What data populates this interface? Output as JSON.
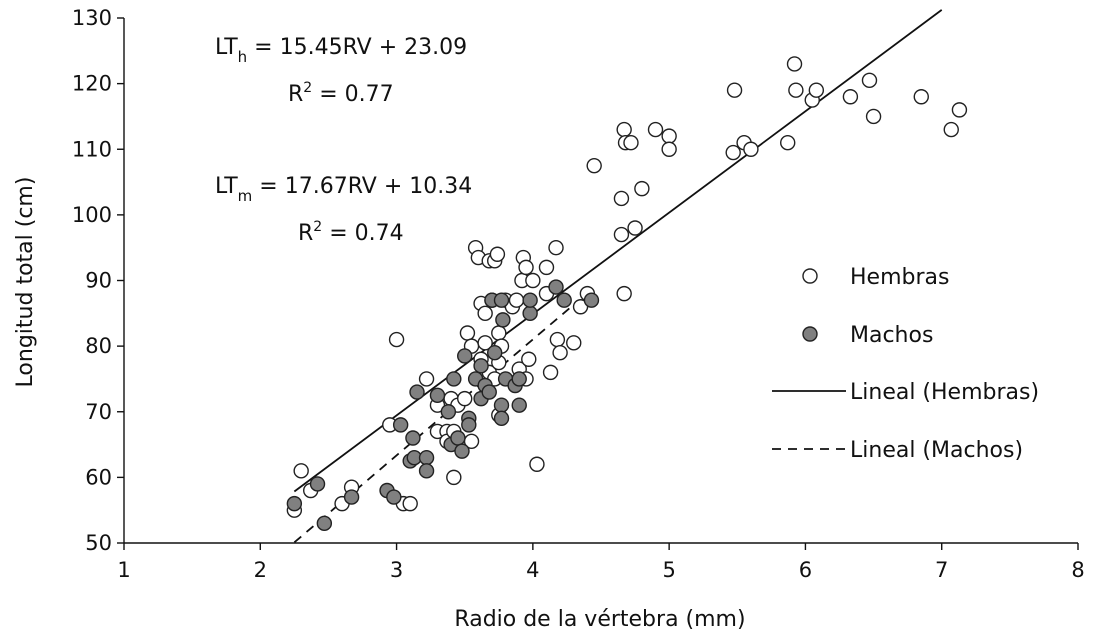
{
  "chart_data": {
    "type": "scatter",
    "xlabel": "Radio de la vértebra (mm)",
    "ylabel": "Longitud total (cm)",
    "xlim": [
      1,
      8
    ],
    "ylim": [
      50,
      130
    ],
    "xticks": [
      1,
      2,
      3,
      4,
      5,
      6,
      7,
      8
    ],
    "yticks": [
      50,
      60,
      70,
      80,
      90,
      100,
      110,
      120,
      130
    ],
    "grid": false,
    "legend_position": "right",
    "series": [
      {
        "name": "Hembras",
        "marker": "open-circle",
        "color": "#ffffff",
        "points": [
          [
            2.25,
            55
          ],
          [
            2.3,
            61
          ],
          [
            2.37,
            58
          ],
          [
            2.67,
            58.5
          ],
          [
            2.6,
            56
          ],
          [
            2.95,
            68
          ],
          [
            3.0,
            81
          ],
          [
            3.05,
            56
          ],
          [
            3.1,
            56
          ],
          [
            3.22,
            75
          ],
          [
            3.3,
            67
          ],
          [
            3.3,
            71
          ],
          [
            3.37,
            67
          ],
          [
            3.37,
            65.5
          ],
          [
            3.4,
            72
          ],
          [
            3.42,
            60
          ],
          [
            3.42,
            67
          ],
          [
            3.45,
            71
          ],
          [
            3.5,
            72
          ],
          [
            3.52,
            82
          ],
          [
            3.55,
            80
          ],
          [
            3.55,
            65.5
          ],
          [
            3.58,
            95
          ],
          [
            3.6,
            93.5
          ],
          [
            3.62,
            86.5
          ],
          [
            3.62,
            78
          ],
          [
            3.65,
            85
          ],
          [
            3.65,
            80.5
          ],
          [
            3.68,
            93
          ],
          [
            3.68,
            76
          ],
          [
            3.7,
            87
          ],
          [
            3.72,
            75
          ],
          [
            3.72,
            93
          ],
          [
            3.74,
            94
          ],
          [
            3.75,
            77.5
          ],
          [
            3.75,
            82
          ],
          [
            3.75,
            69.5
          ],
          [
            3.77,
            80
          ],
          [
            3.8,
            87
          ],
          [
            3.85,
            86
          ],
          [
            3.88,
            87
          ],
          [
            3.9,
            76.5
          ],
          [
            3.92,
            90
          ],
          [
            3.93,
            93.5
          ],
          [
            3.95,
            92
          ],
          [
            3.95,
            75
          ],
          [
            3.97,
            78
          ],
          [
            4.0,
            90
          ],
          [
            4.03,
            62
          ],
          [
            4.1,
            88
          ],
          [
            4.1,
            92
          ],
          [
            4.13,
            76
          ],
          [
            4.17,
            95
          ],
          [
            4.18,
            81
          ],
          [
            4.2,
            79
          ],
          [
            4.3,
            80.5
          ],
          [
            4.35,
            86
          ],
          [
            4.4,
            88
          ],
          [
            4.45,
            107.5
          ],
          [
            4.65,
            102.5
          ],
          [
            4.65,
            97
          ],
          [
            4.67,
            88
          ],
          [
            4.67,
            113
          ],
          [
            4.68,
            111
          ],
          [
            4.72,
            111
          ],
          [
            4.75,
            98
          ],
          [
            4.8,
            104
          ],
          [
            4.9,
            113
          ],
          [
            5.0,
            112
          ],
          [
            5.0,
            110
          ],
          [
            5.47,
            109.5
          ],
          [
            5.48,
            119
          ],
          [
            5.55,
            111
          ],
          [
            5.6,
            110
          ],
          [
            5.87,
            111
          ],
          [
            5.92,
            123
          ],
          [
            5.93,
            119
          ],
          [
            6.05,
            117.5
          ],
          [
            6.08,
            119
          ],
          [
            6.33,
            118
          ],
          [
            6.47,
            120.5
          ],
          [
            6.5,
            115
          ],
          [
            6.85,
            118
          ],
          [
            7.07,
            113
          ],
          [
            7.13,
            116
          ]
        ]
      },
      {
        "name": "Machos",
        "marker": "filled-circle",
        "color": "#808080",
        "points": [
          [
            2.25,
            56
          ],
          [
            2.42,
            59
          ],
          [
            2.47,
            53
          ],
          [
            2.67,
            57
          ],
          [
            2.93,
            58
          ],
          [
            2.98,
            57
          ],
          [
            3.03,
            68
          ],
          [
            3.1,
            62.5
          ],
          [
            3.12,
            66
          ],
          [
            3.13,
            63
          ],
          [
            3.15,
            73
          ],
          [
            3.22,
            63
          ],
          [
            3.22,
            61
          ],
          [
            3.3,
            72.5
          ],
          [
            3.38,
            70
          ],
          [
            3.4,
            65
          ],
          [
            3.42,
            75
          ],
          [
            3.45,
            66
          ],
          [
            3.48,
            64
          ],
          [
            3.5,
            78.5
          ],
          [
            3.53,
            69
          ],
          [
            3.53,
            68
          ],
          [
            3.58,
            75
          ],
          [
            3.62,
            77
          ],
          [
            3.62,
            72
          ],
          [
            3.65,
            74
          ],
          [
            3.68,
            73
          ],
          [
            3.7,
            87
          ],
          [
            3.72,
            79
          ],
          [
            3.77,
            71
          ],
          [
            3.77,
            69
          ],
          [
            3.77,
            87
          ],
          [
            3.78,
            84
          ],
          [
            3.8,
            75
          ],
          [
            3.87,
            74
          ],
          [
            3.9,
            71
          ],
          [
            3.9,
            75
          ],
          [
            3.98,
            85
          ],
          [
            3.98,
            87
          ],
          [
            4.17,
            89
          ],
          [
            4.23,
            87
          ],
          [
            4.43,
            87
          ]
        ]
      }
    ],
    "trendlines": [
      {
        "name": "Lineal (Hembras)",
        "slope": 15.45,
        "intercept": 23.09,
        "x_range": [
          2.25,
          7.0
        ],
        "style": "solid"
      },
      {
        "name": "Lineal (Machos)",
        "slope": 17.67,
        "intercept": 10.34,
        "x_range": [
          2.25,
          4.3
        ],
        "style": "dashed"
      }
    ],
    "annotations": {
      "eq_h": {
        "lhs": "LT",
        "sub": "h",
        "rhs": " = 15.45RV + 23.09",
        "r2": "R",
        "sup": "2",
        "r2_val": " = 0.77"
      },
      "eq_m": {
        "lhs": "LT",
        "sub": "m",
        "rhs": " = 17.67RV + 10.34",
        "r2": "R",
        "sup": "2",
        "r2_val": " = 0.74"
      }
    },
    "legend": [
      "Hembras",
      "Machos",
      "Lineal (Hembras)",
      "Lineal (Machos)"
    ]
  }
}
